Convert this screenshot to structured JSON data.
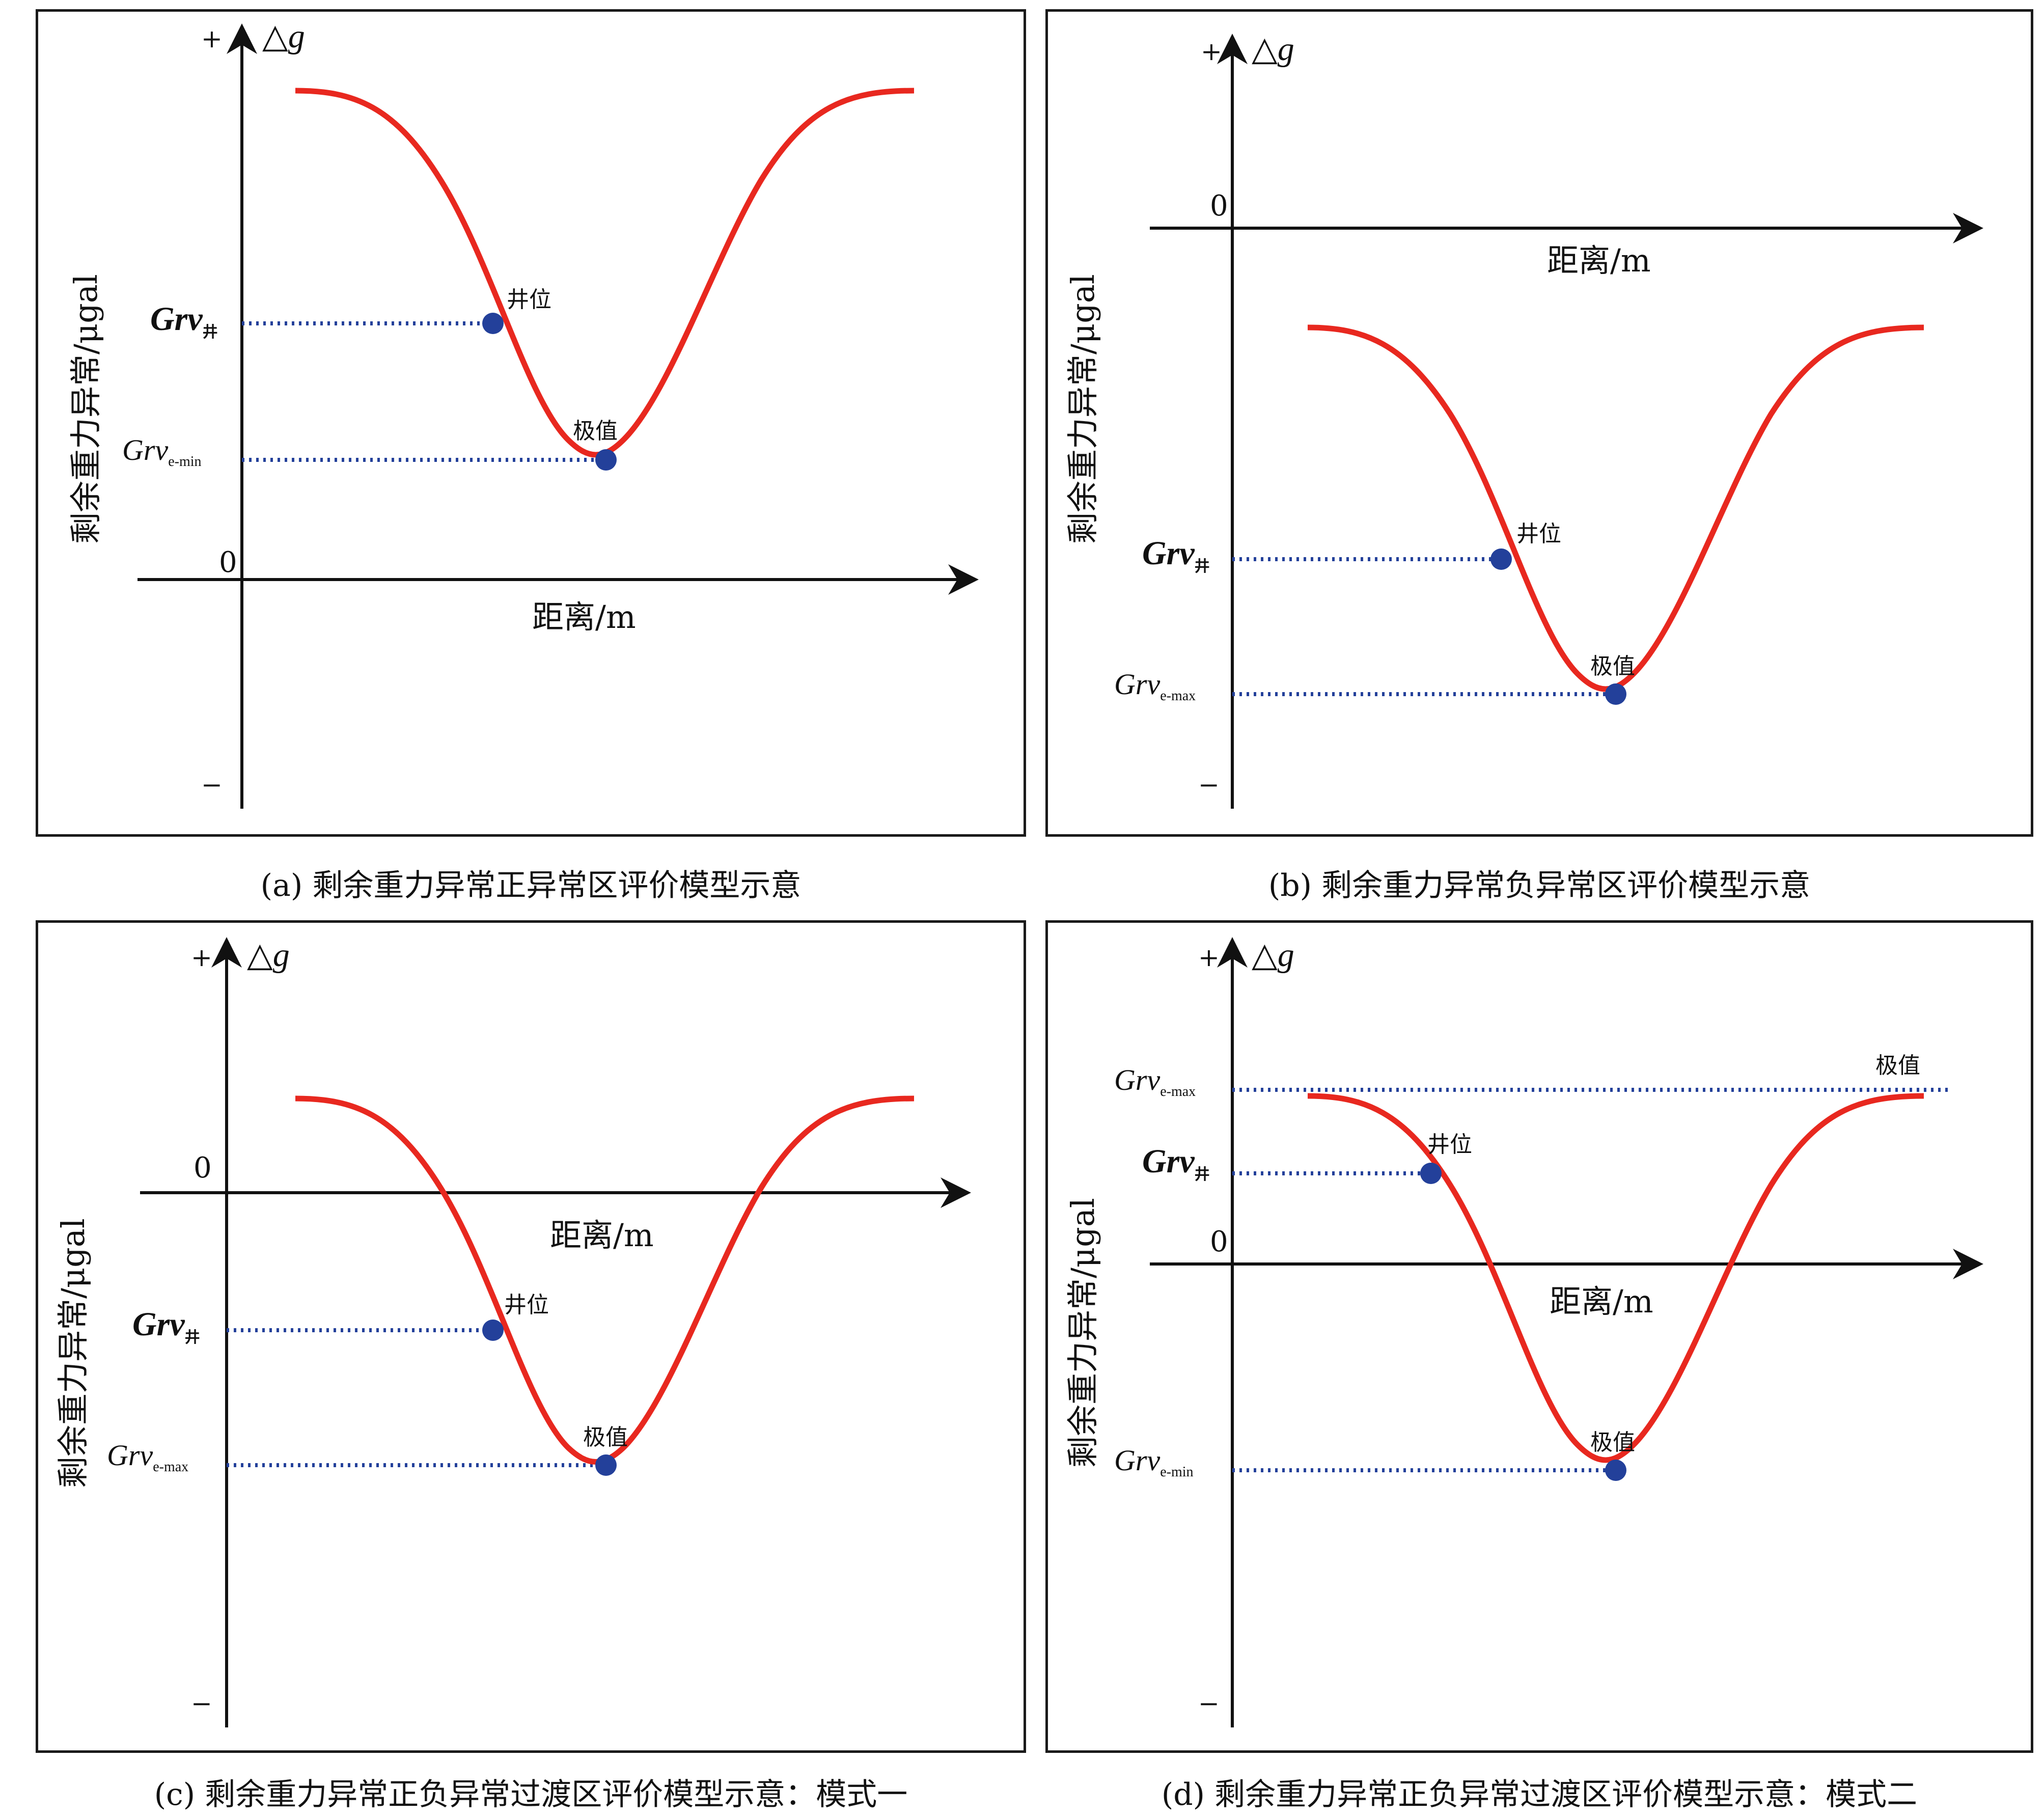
{
  "colors": {
    "curve": "#e8281f",
    "dots": "#23409a",
    "axis": "#111111",
    "frame": "#1a1a1a"
  },
  "common": {
    "axis_y_symbol": "△g",
    "plus": "+",
    "minus": "−",
    "zero": "0",
    "x_label": "距离/m",
    "y_label": "剩余重力异常/μgal",
    "well_marker": "井位",
    "extreme_marker": "极值",
    "grv_prefix": "Grv",
    "well_subscript": "井"
  },
  "panels": [
    {
      "id": "a",
      "caption": "(a) 剩余重力异常正异常区评价模型示意",
      "extreme_subscript": "e-min"
    },
    {
      "id": "b",
      "caption": "(b) 剩余重力异常负异常区评价模型示意",
      "extreme_subscript": "e-max"
    },
    {
      "id": "c",
      "caption": "(c) 剩余重力异常正负异常过渡区评价模型示意：模式一",
      "extreme_subscript": "e-max"
    },
    {
      "id": "d",
      "caption": "(d) 剩余重力异常正负异常过渡区评价模型示意：模式二",
      "extreme_subscript": "e-max",
      "extreme_subscript_low": "e-min"
    }
  ]
}
